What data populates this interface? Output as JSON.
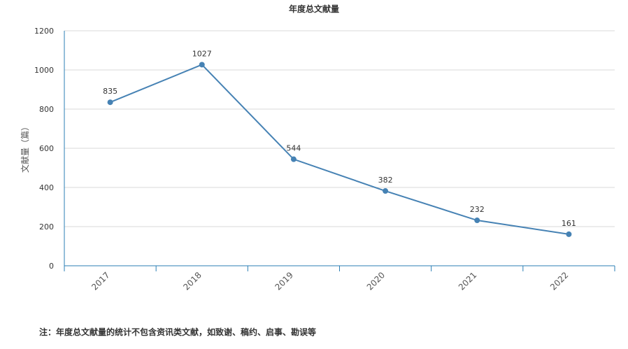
{
  "chart_data": {
    "type": "line",
    "title": "年度总文献量",
    "ylabel": "文献量（篇）",
    "xlabel": "",
    "categories": [
      "2017",
      "2018",
      "2019",
      "2020",
      "2021",
      "2022"
    ],
    "series": [
      {
        "values": [
          835,
          1027,
          544,
          382,
          232,
          161
        ]
      }
    ],
    "ylim": [
      0,
      1200
    ],
    "yticks": [
      0,
      200,
      400,
      600,
      800,
      1000,
      1200
    ],
    "grid": true,
    "colors": {
      "line": "#4682b4",
      "axis": "#2b7fb5",
      "grid": "#d9d9d9"
    }
  },
  "note": "注：年度总文献量的统计不包含资讯类文献，如致谢、稿约、启事、勘误等"
}
